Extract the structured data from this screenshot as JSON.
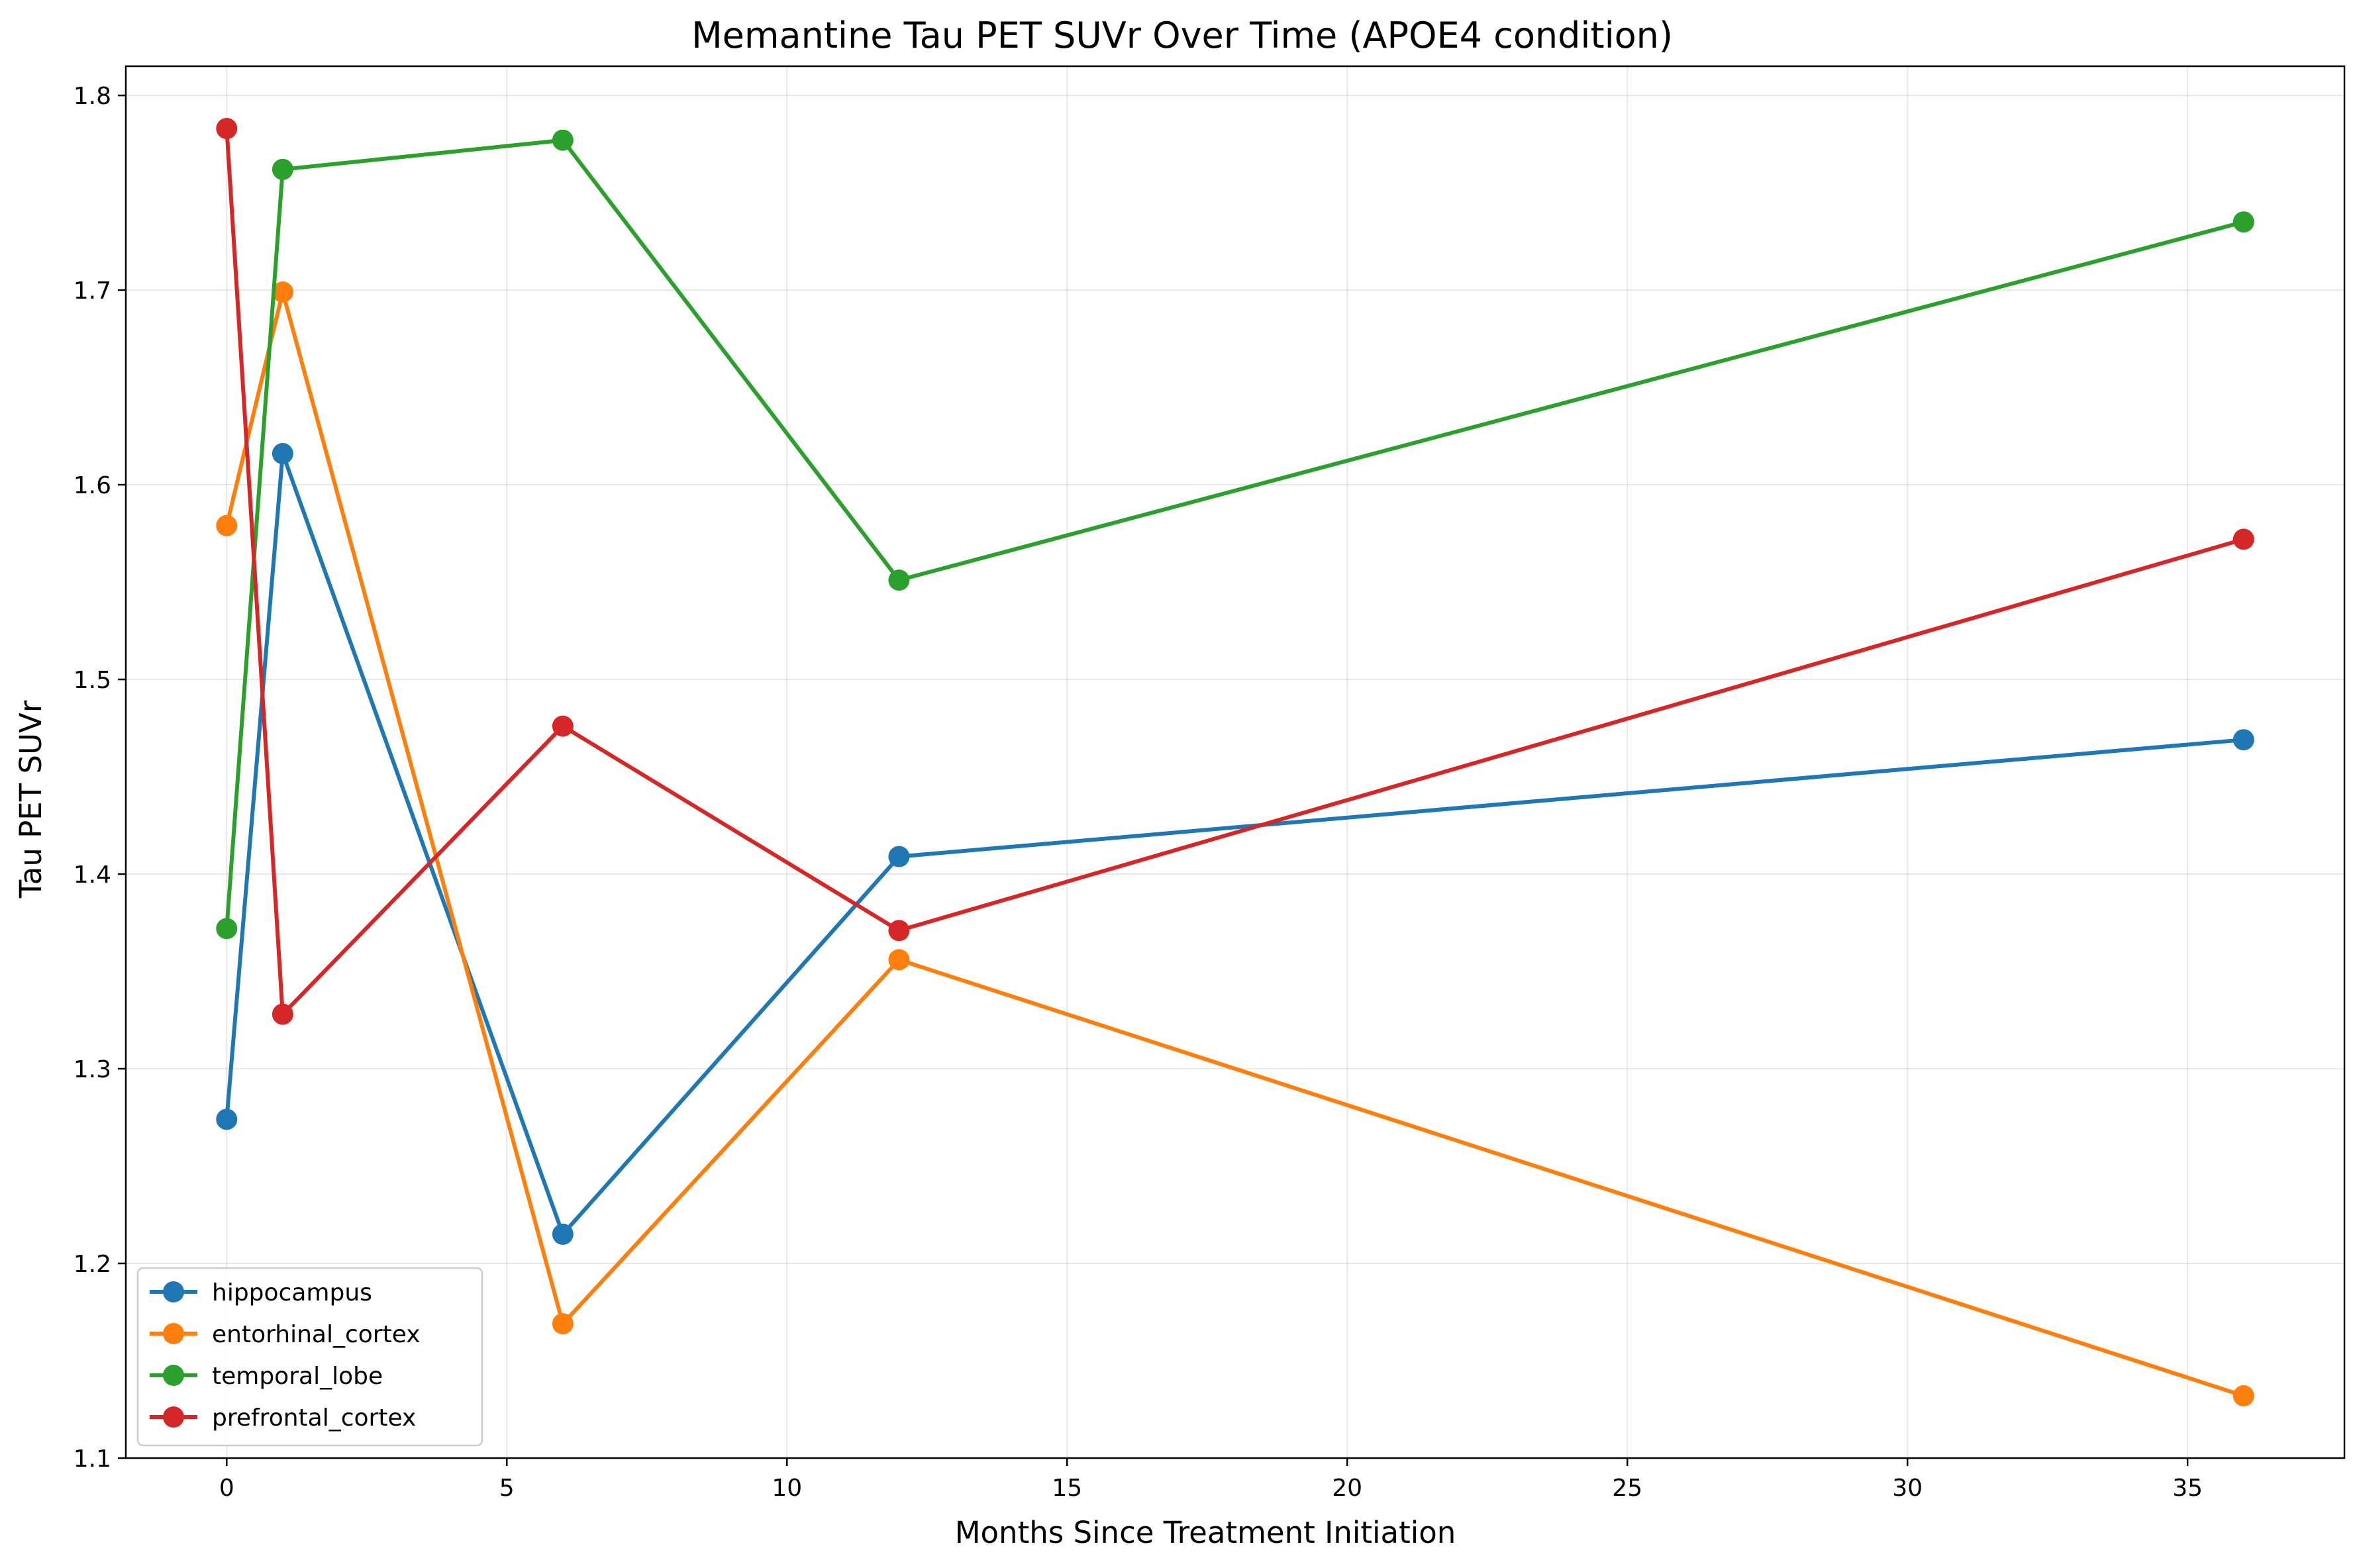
{
  "chart_data": {
    "type": "line",
    "title": "Memantine Tau PET SUVr Over Time (APOE4 condition)",
    "xlabel": "Months Since Treatment Initiation",
    "ylabel": "Tau PET SUVr",
    "xlim": [
      -1.8,
      37.8
    ],
    "ylim": [
      1.1,
      1.815
    ],
    "xticks": [
      0,
      5,
      10,
      15,
      20,
      25,
      30,
      35
    ],
    "yticks": [
      1.1,
      1.2,
      1.3,
      1.4,
      1.5,
      1.6,
      1.7,
      1.8
    ],
    "grid": true,
    "legend_position": "lower-left",
    "x": [
      0,
      1,
      6,
      12,
      36
    ],
    "series": [
      {
        "name": "hippocampus",
        "color": "#1f77b4",
        "values": [
          1.274,
          1.616,
          1.215,
          1.409,
          1.469
        ]
      },
      {
        "name": "entorhinal_cortex",
        "color": "#ff7f0e",
        "values": [
          1.579,
          1.699,
          1.169,
          1.356,
          1.132
        ]
      },
      {
        "name": "temporal_lobe",
        "color": "#2ca02c",
        "values": [
          1.372,
          1.762,
          1.777,
          1.551,
          1.735
        ]
      },
      {
        "name": "prefrontal_cortex",
        "color": "#d62728",
        "values": [
          1.783,
          1.328,
          1.476,
          1.371,
          1.572
        ]
      }
    ]
  }
}
